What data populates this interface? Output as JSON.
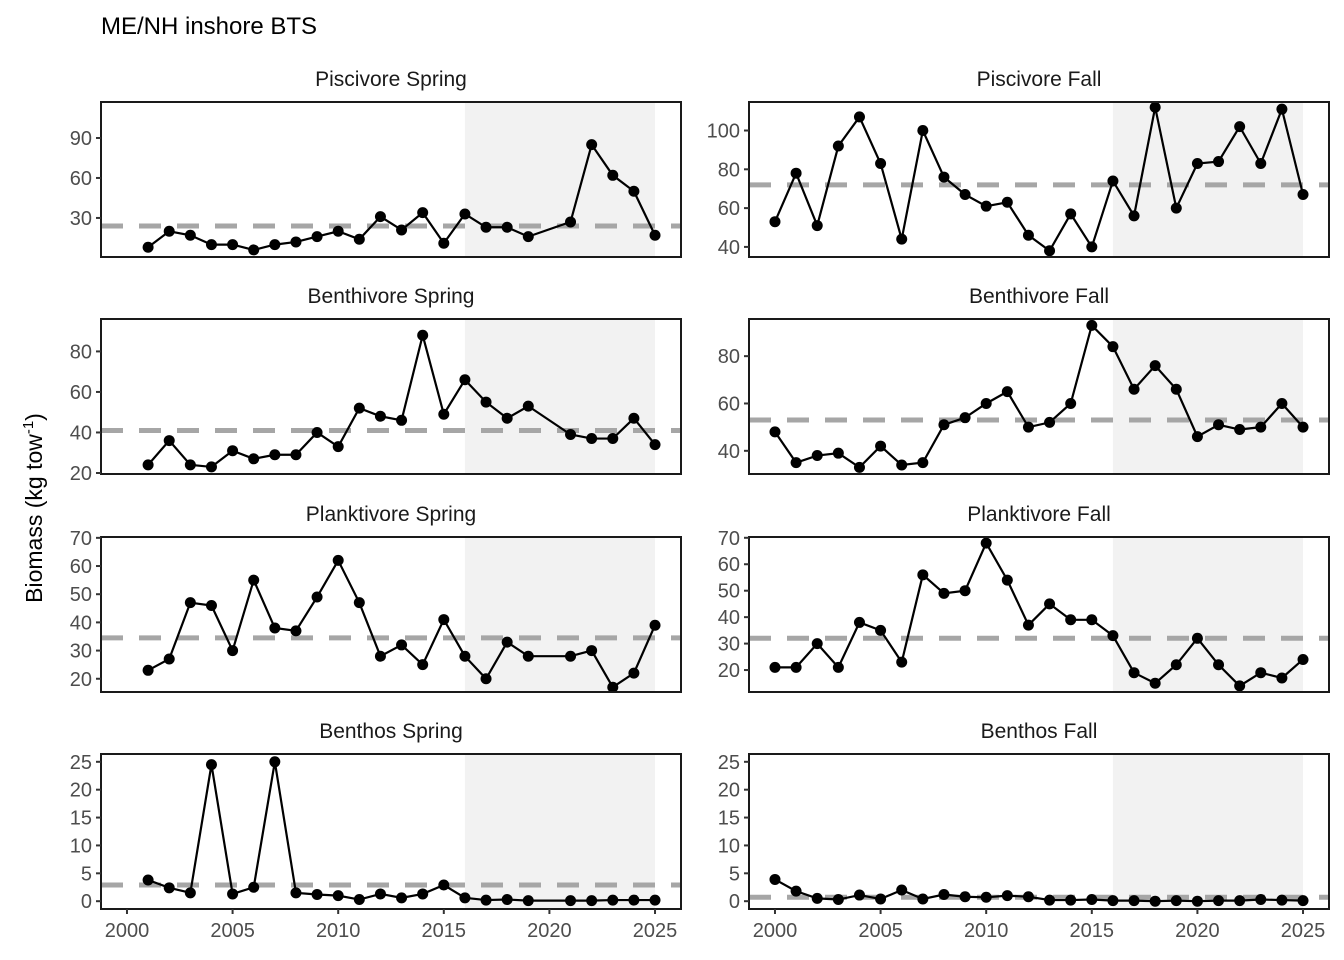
{
  "chart_data": {
    "type": "line",
    "title": "ME/NH inshore BTS",
    "ylabel": "Biomass (kg tow",
    "ylabel_superscript": "-1",
    "ylabel_close": ")",
    "xlabel": "",
    "x_ticks": [
      2000,
      2005,
      2010,
      2015,
      2020,
      2025
    ],
    "xlim": [
      1998.77,
      2026.23
    ],
    "shaded_period": [
      2016,
      2025
    ],
    "colors": {
      "line": "#000000",
      "mean": "#a6a6a6",
      "shade": "#f2f2f2",
      "axis_text": "#4d4d4d"
    },
    "panels": [
      {
        "title": "Piscivore Spring",
        "ylim": [
          0.7,
          117
        ],
        "y_ticks": [
          30,
          60,
          90
        ],
        "mean": 24,
        "x": [
          2001,
          2002,
          2003,
          2004,
          2005,
          2006,
          2007,
          2008,
          2009,
          2010,
          2011,
          2012,
          2013,
          2014,
          2015,
          2016,
          2017,
          2018,
          2019,
          2021,
          2022,
          2023,
          2024,
          2025
        ],
        "y": [
          8,
          20,
          17,
          10,
          10,
          6,
          10,
          12,
          16,
          20,
          14,
          31,
          21,
          34,
          11,
          33,
          23,
          23,
          16,
          27,
          85,
          62,
          50,
          17
        ]
      },
      {
        "title": "Piscivore Fall",
        "ylim": [
          34.8,
          114.7
        ],
        "y_ticks": [
          40,
          60,
          80,
          100
        ],
        "mean": 72,
        "x": [
          2000,
          2001,
          2002,
          2003,
          2004,
          2005,
          2006,
          2007,
          2008,
          2009,
          2010,
          2011,
          2012,
          2013,
          2014,
          2015,
          2016,
          2017,
          2018,
          2019,
          2020,
          2021,
          2022,
          2023,
          2024,
          2025
        ],
        "y": [
          53,
          78,
          51,
          92,
          107,
          83,
          44,
          100,
          76,
          67,
          61,
          63,
          46,
          38,
          57,
          40,
          74,
          56,
          112,
          60,
          83,
          84,
          102,
          83,
          111,
          67
        ]
      },
      {
        "title": "Benthivore Spring",
        "ylim": [
          19.5,
          96
        ],
        "y_ticks": [
          20,
          40,
          60,
          80
        ],
        "mean": 41,
        "x": [
          2001,
          2002,
          2003,
          2004,
          2005,
          2006,
          2007,
          2008,
          2009,
          2010,
          2011,
          2012,
          2013,
          2014,
          2015,
          2016,
          2017,
          2018,
          2019,
          2021,
          2022,
          2023,
          2024,
          2025
        ],
        "y": [
          24,
          36,
          24,
          23,
          31,
          27,
          29,
          29,
          40,
          33,
          52,
          48,
          46,
          88,
          49,
          66,
          55,
          47,
          53,
          39,
          37,
          37,
          47,
          34
        ]
      },
      {
        "title": "Benthivore Fall",
        "ylim": [
          30.2,
          95.7
        ],
        "y_ticks": [
          40,
          60,
          80
        ],
        "mean": 53,
        "x": [
          2000,
          2001,
          2002,
          2003,
          2004,
          2005,
          2006,
          2007,
          2008,
          2009,
          2010,
          2011,
          2012,
          2013,
          2014,
          2015,
          2016,
          2017,
          2018,
          2019,
          2020,
          2021,
          2022,
          2023,
          2024,
          2025
        ],
        "y": [
          48,
          35,
          38,
          39,
          33,
          42,
          34,
          35,
          51,
          54,
          60,
          65,
          50,
          52,
          60,
          93,
          84,
          66,
          76,
          66,
          46,
          51,
          49,
          50,
          60,
          50
        ]
      },
      {
        "title": "Planktivore Spring",
        "ylim": [
          15.3,
          70.3
        ],
        "y_ticks": [
          20,
          30,
          40,
          50,
          60,
          70
        ],
        "mean": 34.5,
        "x": [
          2001,
          2002,
          2003,
          2004,
          2005,
          2006,
          2007,
          2008,
          2009,
          2010,
          2011,
          2012,
          2013,
          2014,
          2015,
          2016,
          2017,
          2018,
          2019,
          2021,
          2022,
          2023,
          2024,
          2025
        ],
        "y": [
          23,
          27,
          47,
          46,
          30,
          55,
          38,
          37,
          49,
          62,
          47,
          28,
          32,
          25,
          41,
          28,
          20,
          33,
          28,
          28,
          30,
          17,
          22,
          39
        ]
      },
      {
        "title": "Planktivore Fall",
        "ylim": [
          11.7,
          70.3
        ],
        "y_ticks": [
          20,
          30,
          40,
          50,
          60,
          70
        ],
        "mean": 32,
        "x": [
          2000,
          2001,
          2002,
          2003,
          2004,
          2005,
          2006,
          2007,
          2008,
          2009,
          2010,
          2011,
          2012,
          2013,
          2014,
          2015,
          2016,
          2017,
          2018,
          2019,
          2020,
          2021,
          2022,
          2023,
          2024,
          2025
        ],
        "y": [
          21,
          21,
          30,
          21,
          38,
          35,
          23,
          56,
          49,
          50,
          68,
          54,
          37,
          45,
          39,
          39,
          33,
          19,
          15,
          22,
          32,
          22,
          14,
          19,
          17,
          24
        ]
      },
      {
        "title": "Benthos Spring",
        "ylim": [
          -1.4,
          26.4
        ],
        "y_ticks": [
          0,
          5,
          10,
          15,
          20,
          25
        ],
        "mean": 2.9,
        "x": [
          2001,
          2002,
          2003,
          2004,
          2005,
          2006,
          2007,
          2008,
          2009,
          2010,
          2011,
          2012,
          2013,
          2014,
          2015,
          2016,
          2017,
          2018,
          2019,
          2021,
          2022,
          2023,
          2024,
          2025
        ],
        "y": [
          3.8,
          2.4,
          1.5,
          24.5,
          1.3,
          2.5,
          25,
          1.5,
          1.2,
          1.0,
          0.3,
          1.3,
          0.6,
          1.3,
          2.9,
          0.6,
          0.2,
          0.3,
          0.1,
          0.1,
          0.1,
          0.2,
          0.2,
          0.2
        ]
      },
      {
        "title": "Benthos Fall",
        "ylim": [
          -1.4,
          26.4
        ],
        "y_ticks": [
          0,
          5,
          10,
          15,
          20,
          25
        ],
        "mean": 0.7,
        "x": [
          2000,
          2001,
          2002,
          2003,
          2004,
          2005,
          2006,
          2007,
          2008,
          2009,
          2010,
          2011,
          2012,
          2013,
          2014,
          2015,
          2016,
          2017,
          2018,
          2019,
          2020,
          2021,
          2022,
          2023,
          2024,
          2025
        ],
        "y": [
          3.9,
          1.8,
          0.5,
          0.3,
          1.1,
          0.4,
          2.0,
          0.4,
          1.2,
          0.8,
          0.7,
          1.0,
          0.8,
          0.2,
          0.2,
          0.3,
          0.1,
          0.1,
          0.0,
          0.1,
          0.0,
          0.1,
          0.1,
          0.3,
          0.2,
          0.1
        ]
      }
    ]
  }
}
